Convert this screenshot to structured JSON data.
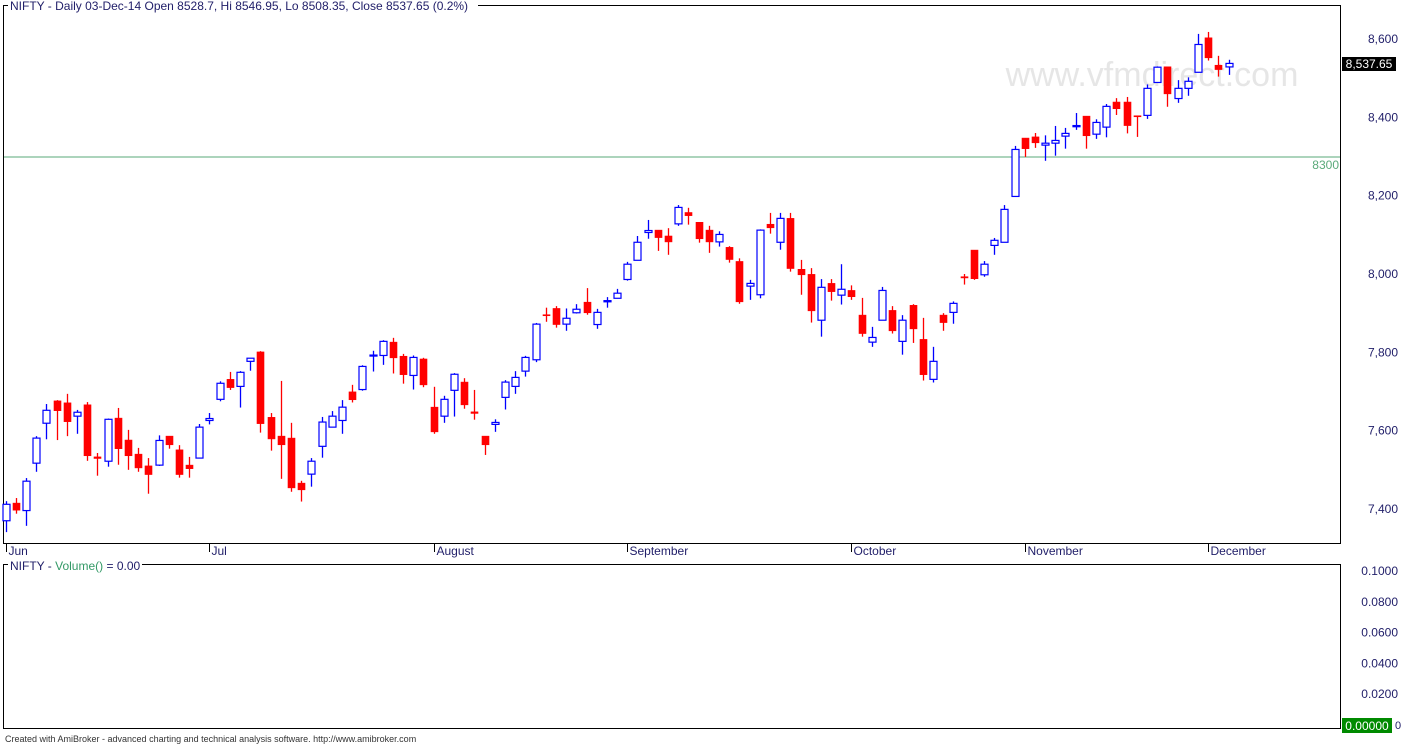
{
  "main_pane": {
    "title": "NIFTY - Daily 03-Dec-14 Open 8528.7, Hi 8546.95, Lo 8508.35, Close 8537.65 (0.2%)",
    "watermark": "www.vfmdirect.com",
    "last_price_label": "8,537.65",
    "hline_label": "8300"
  },
  "volume_pane": {
    "title_symbol": "NIFTY",
    "title_sep": " - ",
    "title_indicator": "Volume()",
    "title_value": " = 0.00",
    "last_value_label": "0.00000",
    "last_value_trailing": "0"
  },
  "footer": "Created with AmiBroker - advanced charting and technical analysis software. http://www.amibroker.com",
  "colors": {
    "up": "#0000ff",
    "down": "#ff0000",
    "hline": "#5aaa7a",
    "watermark": "#e6e6e6",
    "volume_badge": "#008a00",
    "price_badge": "#000000"
  },
  "chart_data": [
    {
      "type": "candlestick",
      "symbol": "NIFTY",
      "interval": "Daily",
      "ylim": [
        7340,
        8680
      ],
      "y_ticks": [
        7400,
        7600,
        7800,
        8000,
        8200,
        8400,
        8600
      ],
      "y_tick_labels": [
        "7,400",
        "7,600",
        "7,800",
        "8,000",
        "8,200",
        "8,400",
        "8,600"
      ],
      "horizontal_line": 8300,
      "x_labels": [
        {
          "label": "Jun",
          "bar": 0
        },
        {
          "label": "Jul",
          "bar": 20
        },
        {
          "label": "August",
          "bar": 42
        },
        {
          "label": "September",
          "bar": 61
        },
        {
          "label": "October",
          "bar": 83
        },
        {
          "label": "November",
          "bar": 100
        },
        {
          "label": "December",
          "bar": 118
        }
      ],
      "ohlc_columns": [
        "open",
        "high",
        "low",
        "close"
      ],
      "ohlc": [
        [
          7370,
          7420,
          7341,
          7412
        ],
        [
          7415,
          7428,
          7388,
          7397
        ],
        [
          7396,
          7479,
          7357,
          7471
        ],
        [
          7517,
          7586,
          7495,
          7581
        ],
        [
          7619,
          7668,
          7578,
          7652
        ],
        [
          7676,
          7678,
          7576,
          7651
        ],
        [
          7671,
          7694,
          7586,
          7623
        ],
        [
          7637,
          7653,
          7592,
          7647
        ],
        [
          7666,
          7673,
          7523,
          7536
        ],
        [
          7533,
          7543,
          7485,
          7529
        ],
        [
          7522,
          7631,
          7508,
          7629
        ],
        [
          7632,
          7658,
          7513,
          7554
        ],
        [
          7576,
          7602,
          7500,
          7536
        ],
        [
          7540,
          7556,
          7495,
          7505
        ],
        [
          7510,
          7530,
          7439,
          7488
        ],
        [
          7512,
          7588,
          7510,
          7575
        ],
        [
          7586,
          7586,
          7554,
          7564
        ],
        [
          7551,
          7563,
          7480,
          7488
        ],
        [
          7512,
          7533,
          7480,
          7503
        ],
        [
          7530,
          7617,
          7530,
          7609
        ],
        [
          7626,
          7645,
          7616,
          7631
        ],
        [
          7680,
          7726,
          7675,
          7721
        ],
        [
          7731,
          7750,
          7704,
          7710
        ],
        [
          7713,
          7752,
          7659,
          7749
        ],
        [
          7777,
          7785,
          7753,
          7785
        ],
        [
          7801,
          7803,
          7595,
          7618
        ],
        [
          7634,
          7645,
          7549,
          7579
        ],
        [
          7586,
          7727,
          7477,
          7564
        ],
        [
          7581,
          7620,
          7444,
          7454
        ],
        [
          7466,
          7472,
          7419,
          7449
        ],
        [
          7489,
          7530,
          7457,
          7522
        ],
        [
          7560,
          7635,
          7531,
          7622
        ],
        [
          7609,
          7650,
          7609,
          7637
        ],
        [
          7626,
          7678,
          7592,
          7660
        ],
        [
          7699,
          7717,
          7672,
          7679
        ],
        [
          7705,
          7767,
          7702,
          7764
        ],
        [
          7791,
          7804,
          7751,
          7793
        ],
        [
          7792,
          7831,
          7768,
          7828
        ],
        [
          7826,
          7837,
          7746,
          7786
        ],
        [
          7790,
          7796,
          7720,
          7743
        ],
        [
          7741,
          7792,
          7705,
          7787
        ],
        [
          7783,
          7786,
          7711,
          7717
        ],
        [
          7660,
          7712,
          7592,
          7597
        ],
        [
          7637,
          7689,
          7620,
          7680
        ],
        [
          7703,
          7747,
          7636,
          7744
        ],
        [
          7724,
          7734,
          7656,
          7666
        ],
        [
          7648,
          7704,
          7628,
          7644
        ],
        [
          7586,
          7586,
          7538,
          7564
        ],
        [
          7616,
          7629,
          7597,
          7621
        ],
        [
          7685,
          7729,
          7654,
          7724
        ],
        [
          7713,
          7752,
          7694,
          7736
        ],
        [
          7752,
          7791,
          7738,
          7787
        ],
        [
          7781,
          7875,
          7775,
          7872
        ],
        [
          7896,
          7914,
          7878,
          7894
        ],
        [
          7912,
          7918,
          7863,
          7871
        ],
        [
          7872,
          7912,
          7855,
          7887
        ],
        [
          7901,
          7923,
          7899,
          7910
        ],
        [
          7928,
          7964,
          7896,
          7901
        ],
        [
          7871,
          7911,
          7860,
          7902
        ],
        [
          7929,
          7941,
          7914,
          7932
        ],
        [
          7938,
          7962,
          7938,
          7951
        ],
        [
          7986,
          8031,
          7983,
          8025
        ],
        [
          8035,
          8097,
          8035,
          8081
        ],
        [
          8106,
          8138,
          8090,
          8111
        ],
        [
          8112,
          8112,
          8059,
          8093
        ],
        [
          8097,
          8117,
          8049,
          8082
        ],
        [
          8128,
          8176,
          8123,
          8170
        ],
        [
          8157,
          8169,
          8126,
          8149
        ],
        [
          8132,
          8132,
          8080,
          8090
        ],
        [
          8112,
          8123,
          8054,
          8082
        ],
        [
          8082,
          8109,
          8070,
          8101
        ],
        [
          8068,
          8071,
          8029,
          8037
        ],
        [
          8032,
          8040,
          7924,
          7929
        ],
        [
          7969,
          7985,
          7934,
          7976
        ],
        [
          7947,
          8114,
          7938,
          8112
        ],
        [
          8127,
          8156,
          8103,
          8118
        ],
        [
          8081,
          8156,
          8062,
          8142
        ],
        [
          8142,
          8156,
          8006,
          8014
        ],
        [
          8012,
          8036,
          7947,
          7998
        ],
        [
          7999,
          8015,
          7876,
          7906
        ],
        [
          7882,
          7987,
          7840,
          7966
        ],
        [
          7976,
          7987,
          7932,
          7955
        ],
        [
          7946,
          8025,
          7922,
          7961
        ],
        [
          7958,
          7971,
          7934,
          7942
        ],
        [
          7895,
          7939,
          7840,
          7848
        ],
        [
          7826,
          7865,
          7814,
          7838
        ],
        [
          7882,
          7967,
          7882,
          7958
        ],
        [
          7907,
          7918,
          7848,
          7855
        ],
        [
          7828,
          7895,
          7794,
          7882
        ],
        [
          7920,
          7923,
          7824,
          7860
        ],
        [
          7833,
          7888,
          7728,
          7743
        ],
        [
          7731,
          7814,
          7723,
          7777
        ],
        [
          7895,
          7900,
          7855,
          7876
        ],
        [
          7902,
          7930,
          7873,
          7925
        ],
        [
          7993,
          8000,
          7973,
          7990
        ],
        [
          8061,
          8061,
          7985,
          7988
        ],
        [
          7998,
          8033,
          7993,
          8025
        ],
        [
          8073,
          8092,
          8049,
          8086
        ],
        [
          8081,
          8176,
          8081,
          8165
        ],
        [
          8198,
          8327,
          8198,
          8318
        ],
        [
          8347,
          8347,
          8299,
          8320
        ],
        [
          8350,
          8360,
          8322,
          8335
        ],
        [
          8329,
          8354,
          8289,
          8334
        ],
        [
          8334,
          8378,
          8302,
          8341
        ],
        [
          8352,
          8373,
          8320,
          8359
        ],
        [
          8376,
          8411,
          8368,
          8379
        ],
        [
          8403,
          8403,
          8320,
          8353
        ],
        [
          8357,
          8395,
          8345,
          8387
        ],
        [
          8375,
          8434,
          8349,
          8428
        ],
        [
          8439,
          8449,
          8406,
          8422
        ],
        [
          8439,
          8452,
          8359,
          8379
        ],
        [
          8404,
          8404,
          8350,
          8402
        ],
        [
          8405,
          8484,
          8396,
          8474
        ],
        [
          8489,
          8530,
          8489,
          8528
        ],
        [
          8529,
          8529,
          8427,
          8460
        ],
        [
          8448,
          8495,
          8437,
          8474
        ],
        [
          8474,
          8502,
          8455,
          8492
        ],
        [
          8515,
          8613,
          8515,
          8586
        ],
        [
          8603,
          8618,
          8545,
          8552
        ],
        [
          8533,
          8557,
          8504,
          8522
        ],
        [
          8528.7,
          8546.95,
          8508.35,
          8537.65
        ]
      ]
    },
    {
      "type": "line",
      "indicator": "Volume()",
      "ylim": [
        0,
        0.1
      ],
      "y_ticks": [
        0,
        0.02,
        0.04,
        0.06,
        0.08,
        0.1
      ],
      "y_tick_labels": [
        "0",
        "0.0200",
        "0.0400",
        "0.0600",
        "0.0800",
        "0.1000"
      ],
      "last_value": 0
    }
  ]
}
